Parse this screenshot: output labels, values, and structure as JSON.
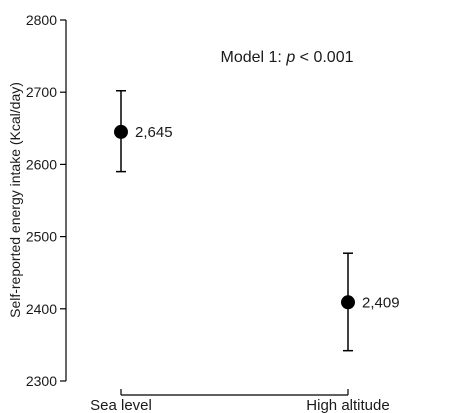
{
  "chart_data": {
    "type": "scatter",
    "categories": [
      "Sea level",
      "High altitude"
    ],
    "values": [
      2645,
      2409
    ],
    "error_lower": [
      2590,
      2342
    ],
    "error_upper": [
      2702,
      2477
    ],
    "data_labels": [
      "2,645",
      "2,409"
    ],
    "ylabel": "Self-reported energy intake (Kcal/day)",
    "xlabel": "",
    "ylim": [
      2300,
      2800
    ],
    "yticks": [
      2300,
      2400,
      2500,
      2600,
      2700,
      2800
    ],
    "annotation": {
      "prefix": "Model 1: ",
      "italic": "p",
      "suffix": " < 0.001"
    },
    "grid": false,
    "legend": "none",
    "colors": {
      "marker": "#000000",
      "axis": "#000000"
    }
  }
}
